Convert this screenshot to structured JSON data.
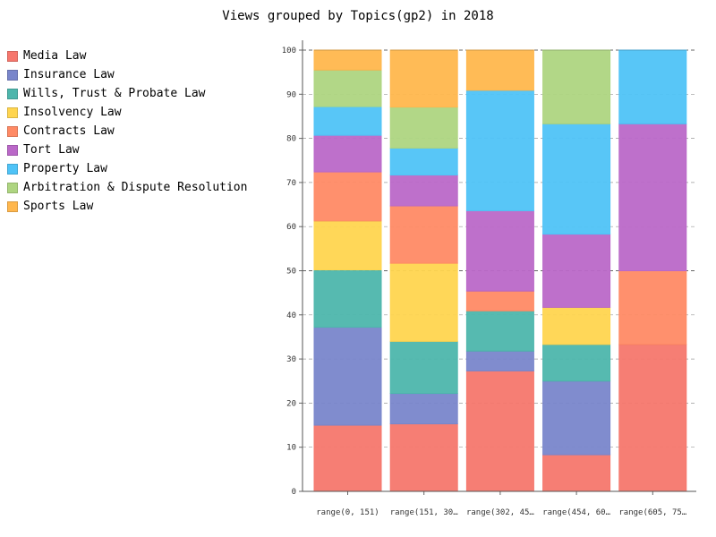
{
  "chart_data": {
    "type": "bar",
    "stacked": true,
    "title": "Views grouped by Topics(gp2) in 2018",
    "xlabel": "",
    "ylabel": "",
    "ylim": [
      0,
      100
    ],
    "yticks": [
      0,
      10,
      20,
      30,
      40,
      50,
      60,
      70,
      80,
      90,
      100
    ],
    "grid": true,
    "legend_position": "left",
    "categories": [
      "range(0, 151)",
      "range(151, 30…",
      "range(302, 45…",
      "range(454, 60…",
      "range(605, 75…"
    ],
    "series": [
      {
        "name": "Media Law",
        "color": "#F6776D",
        "values": [
          15.0,
          15.3,
          27.3,
          8.3,
          33.3
        ]
      },
      {
        "name": "Insurance Law",
        "color": "#7986CB",
        "values": [
          22.2,
          6.9,
          4.5,
          16.7,
          0
        ]
      },
      {
        "name": "Wills, Trust & Probate Law",
        "color": "#4DB6AC",
        "values": [
          13.0,
          11.8,
          9.1,
          8.3,
          0
        ]
      },
      {
        "name": "Insolvency Law",
        "color": "#FFD54F",
        "values": [
          11.1,
          17.7,
          0,
          8.4,
          0
        ]
      },
      {
        "name": "Contracts Law",
        "color": "#FF8A65",
        "values": [
          11.1,
          13.0,
          4.5,
          0,
          16.7
        ]
      },
      {
        "name": "Tort Law",
        "color": "#BA68C8",
        "values": [
          8.3,
          7.0,
          18.2,
          16.6,
          33.3
        ]
      },
      {
        "name": "Property Law",
        "color": "#4FC3F7",
        "values": [
          6.5,
          6.1,
          27.3,
          25.0,
          16.7
        ]
      },
      {
        "name": "Arbitration & Dispute Resolution",
        "color": "#AED581",
        "values": [
          8.3,
          9.3,
          0,
          16.7,
          0
        ]
      },
      {
        "name": "Sports Law",
        "color": "#FFB74D",
        "values": [
          4.5,
          12.9,
          9.1,
          0,
          0
        ]
      }
    ]
  }
}
